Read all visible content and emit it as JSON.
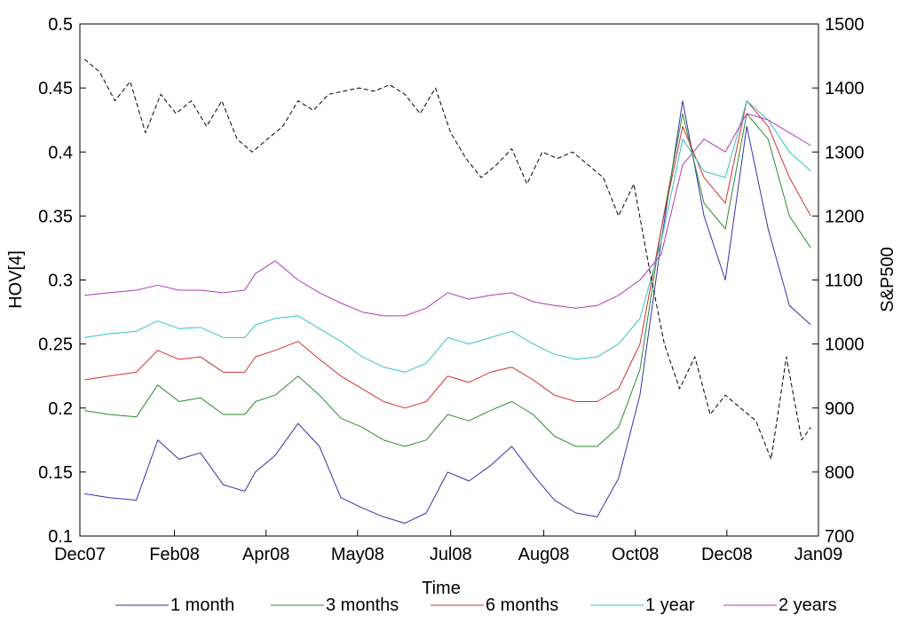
{
  "chart_data": {
    "type": "line",
    "xlabel": "Time",
    "ylabel": "HOV[4]",
    "y2label": "S&P500",
    "x_ticks": [
      "Dec07",
      "Feb08",
      "Apr08",
      "May08",
      "Jul08",
      "Aug08",
      "Oct08",
      "Dec08",
      "Jan09"
    ],
    "x_tick_dates": [
      "2007-12-01",
      "2008-02-01",
      "2008-04-01",
      "2008-05-31",
      "2008-07-31",
      "2008-09-30",
      "2008-11-29",
      "2009-01-28",
      "2009-03-29"
    ],
    "xlim": [
      "2007-12-01",
      "2009-03-29"
    ],
    "ylim": [
      0.1,
      0.5
    ],
    "y_ticks": [
      "0.1",
      "0.15",
      "0.2",
      "0.25",
      "0.3",
      "0.35",
      "0.4",
      "0.45",
      "0.5"
    ],
    "y2lim": [
      700,
      1500
    ],
    "y2_ticks": [
      "700",
      "800",
      "900",
      "1000",
      "1100",
      "1200",
      "1300",
      "1400",
      "1500"
    ],
    "legend_position": "bottom",
    "grid": false,
    "series": [
      {
        "name": "1 month",
        "color": "#3333aa",
        "axis": "left",
        "x": [
          "2007-12-04",
          "2007-12-20",
          "2008-01-07",
          "2008-01-21",
          "2008-02-04",
          "2008-02-18",
          "2008-03-04",
          "2008-03-18",
          "2008-03-25",
          "2008-04-07",
          "2008-04-22",
          "2008-05-06",
          "2008-05-20",
          "2008-06-03",
          "2008-06-17",
          "2008-07-01",
          "2008-07-15",
          "2008-07-29",
          "2008-08-12",
          "2008-08-26",
          "2008-09-09",
          "2008-09-23",
          "2008-10-07",
          "2008-10-21",
          "2008-11-04",
          "2008-11-18",
          "2008-12-02",
          "2008-12-16",
          "2008-12-30",
          "2009-01-13",
          "2009-01-27",
          "2009-02-10",
          "2009-02-24",
          "2009-03-10",
          "2009-03-24"
        ],
        "y": [
          0.133,
          0.13,
          0.128,
          0.175,
          0.16,
          0.165,
          0.14,
          0.135,
          0.15,
          0.163,
          0.188,
          0.17,
          0.13,
          0.122,
          0.115,
          0.11,
          0.118,
          0.15,
          0.143,
          0.155,
          0.17,
          0.148,
          0.128,
          0.118,
          0.115,
          0.145,
          0.21,
          0.33,
          0.44,
          0.35,
          0.3,
          0.42,
          0.34,
          0.28,
          0.265
        ]
      },
      {
        "name": "3 months",
        "color": "#2e8b2e",
        "axis": "left",
        "x": [
          "2007-12-04",
          "2007-12-20",
          "2008-01-07",
          "2008-01-21",
          "2008-02-04",
          "2008-02-18",
          "2008-03-04",
          "2008-03-18",
          "2008-03-25",
          "2008-04-07",
          "2008-04-22",
          "2008-05-06",
          "2008-05-20",
          "2008-06-03",
          "2008-06-17",
          "2008-07-01",
          "2008-07-15",
          "2008-07-29",
          "2008-08-12",
          "2008-08-26",
          "2008-09-09",
          "2008-09-23",
          "2008-10-07",
          "2008-10-21",
          "2008-11-04",
          "2008-11-18",
          "2008-12-02",
          "2008-12-16",
          "2008-12-30",
          "2009-01-13",
          "2009-01-27",
          "2009-02-10",
          "2009-02-24",
          "2009-03-10",
          "2009-03-24"
        ],
        "y": [
          0.198,
          0.195,
          0.193,
          0.218,
          0.205,
          0.208,
          0.195,
          0.195,
          0.205,
          0.21,
          0.225,
          0.21,
          0.192,
          0.185,
          0.175,
          0.17,
          0.175,
          0.195,
          0.19,
          0.198,
          0.205,
          0.195,
          0.178,
          0.17,
          0.17,
          0.185,
          0.23,
          0.34,
          0.43,
          0.36,
          0.34,
          0.43,
          0.41,
          0.35,
          0.325
        ]
      },
      {
        "name": "6 months",
        "color": "#d43030",
        "axis": "left",
        "x": [
          "2007-12-04",
          "2007-12-20",
          "2008-01-07",
          "2008-01-21",
          "2008-02-04",
          "2008-02-18",
          "2008-03-04",
          "2008-03-18",
          "2008-03-25",
          "2008-04-07",
          "2008-04-22",
          "2008-05-06",
          "2008-05-20",
          "2008-06-03",
          "2008-06-17",
          "2008-07-01",
          "2008-07-15",
          "2008-07-29",
          "2008-08-12",
          "2008-08-26",
          "2008-09-09",
          "2008-09-23",
          "2008-10-07",
          "2008-10-21",
          "2008-11-04",
          "2008-11-18",
          "2008-12-02",
          "2008-12-16",
          "2008-12-30",
          "2009-01-13",
          "2009-01-27",
          "2009-02-10",
          "2009-02-24",
          "2009-03-10",
          "2009-03-24"
        ],
        "y": [
          0.222,
          0.225,
          0.228,
          0.245,
          0.238,
          0.24,
          0.228,
          0.228,
          0.24,
          0.245,
          0.252,
          0.238,
          0.225,
          0.215,
          0.205,
          0.2,
          0.205,
          0.225,
          0.22,
          0.228,
          0.232,
          0.222,
          0.21,
          0.205,
          0.205,
          0.215,
          0.25,
          0.34,
          0.42,
          0.38,
          0.36,
          0.44,
          0.42,
          0.38,
          0.35
        ]
      },
      {
        "name": "1 year",
        "color": "#33c4c4",
        "axis": "left",
        "x": [
          "2007-12-04",
          "2007-12-20",
          "2008-01-07",
          "2008-01-21",
          "2008-02-04",
          "2008-02-18",
          "2008-03-04",
          "2008-03-18",
          "2008-03-25",
          "2008-04-07",
          "2008-04-22",
          "2008-05-06",
          "2008-05-20",
          "2008-06-03",
          "2008-06-17",
          "2008-07-01",
          "2008-07-15",
          "2008-07-29",
          "2008-08-12",
          "2008-08-26",
          "2008-09-09",
          "2008-09-23",
          "2008-10-07",
          "2008-10-21",
          "2008-11-04",
          "2008-11-18",
          "2008-12-02",
          "2008-12-16",
          "2008-12-30",
          "2009-01-13",
          "2009-01-27",
          "2009-02-10",
          "2009-02-24",
          "2009-03-10",
          "2009-03-24"
        ],
        "y": [
          0.255,
          0.258,
          0.26,
          0.268,
          0.262,
          0.263,
          0.255,
          0.255,
          0.265,
          0.27,
          0.272,
          0.262,
          0.252,
          0.24,
          0.232,
          0.228,
          0.235,
          0.255,
          0.25,
          0.255,
          0.26,
          0.25,
          0.242,
          0.238,
          0.24,
          0.25,
          0.27,
          0.33,
          0.41,
          0.385,
          0.38,
          0.44,
          0.425,
          0.4,
          0.385
        ]
      },
      {
        "name": "2 years",
        "color": "#b03cb0",
        "axis": "left",
        "x": [
          "2007-12-04",
          "2007-12-20",
          "2008-01-07",
          "2008-01-21",
          "2008-02-04",
          "2008-02-18",
          "2008-03-04",
          "2008-03-18",
          "2008-03-25",
          "2008-04-07",
          "2008-04-22",
          "2008-05-06",
          "2008-05-20",
          "2008-06-03",
          "2008-06-17",
          "2008-07-01",
          "2008-07-15",
          "2008-07-29",
          "2008-08-12",
          "2008-08-26",
          "2008-09-09",
          "2008-09-23",
          "2008-10-07",
          "2008-10-21",
          "2008-11-04",
          "2008-11-18",
          "2008-12-02",
          "2008-12-16",
          "2008-12-30",
          "2009-01-13",
          "2009-01-27",
          "2009-02-10",
          "2009-02-24",
          "2009-03-10",
          "2009-03-24"
        ],
        "y": [
          0.288,
          0.29,
          0.292,
          0.296,
          0.292,
          0.292,
          0.29,
          0.292,
          0.305,
          0.315,
          0.3,
          0.29,
          0.282,
          0.275,
          0.272,
          0.272,
          0.278,
          0.29,
          0.285,
          0.288,
          0.29,
          0.283,
          0.28,
          0.278,
          0.28,
          0.288,
          0.3,
          0.32,
          0.39,
          0.41,
          0.4,
          0.43,
          0.425,
          0.415,
          0.405
        ]
      },
      {
        "name": "S&P500",
        "color": "#000000",
        "dashed": true,
        "axis": "right",
        "x": [
          "2007-12-04",
          "2007-12-14",
          "2007-12-24",
          "2008-01-03",
          "2008-01-13",
          "2008-01-23",
          "2008-02-02",
          "2008-02-12",
          "2008-02-22",
          "2008-03-03",
          "2008-03-13",
          "2008-03-23",
          "2008-04-02",
          "2008-04-12",
          "2008-04-22",
          "2008-05-02",
          "2008-05-12",
          "2008-05-22",
          "2008-06-01",
          "2008-06-11",
          "2008-06-21",
          "2008-07-01",
          "2008-07-11",
          "2008-07-21",
          "2008-07-31",
          "2008-08-10",
          "2008-08-20",
          "2008-08-30",
          "2008-09-09",
          "2008-09-19",
          "2008-09-29",
          "2008-10-09",
          "2008-10-19",
          "2008-10-29",
          "2008-11-08",
          "2008-11-18",
          "2008-11-28",
          "2008-12-08",
          "2008-12-18",
          "2008-12-28",
          "2009-01-07",
          "2009-01-17",
          "2009-01-27",
          "2009-02-06",
          "2009-02-16",
          "2009-02-26",
          "2009-03-08",
          "2009-03-18",
          "2009-03-24"
        ],
        "y": [
          1445,
          1425,
          1380,
          1410,
          1330,
          1390,
          1360,
          1380,
          1340,
          1380,
          1320,
          1300,
          1320,
          1340,
          1380,
          1365,
          1390,
          1395,
          1400,
          1395,
          1405,
          1390,
          1360,
          1400,
          1330,
          1290,
          1260,
          1280,
          1305,
          1250,
          1300,
          1290,
          1300,
          1280,
          1260,
          1200,
          1250,
          1120,
          1000,
          930,
          980,
          890,
          920,
          900,
          880,
          820,
          980,
          850,
          870
        ]
      }
    ]
  }
}
